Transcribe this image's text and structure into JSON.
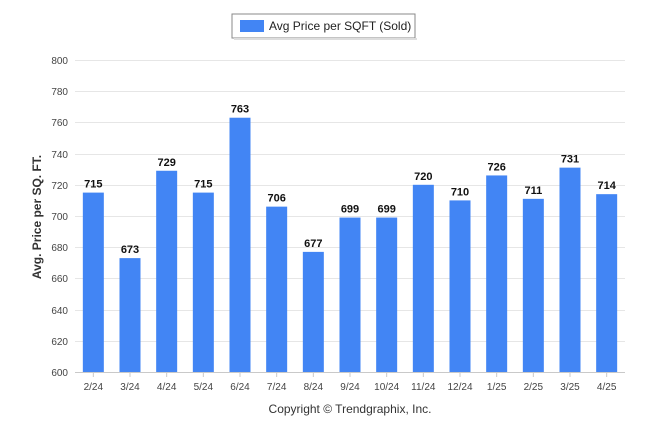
{
  "chart_data": {
    "type": "bar",
    "categories": [
      "2/24",
      "3/24",
      "4/24",
      "5/24",
      "6/24",
      "7/24",
      "8/24",
      "9/24",
      "10/24",
      "11/24",
      "12/24",
      "1/25",
      "2/25",
      "3/25",
      "4/25"
    ],
    "series": [
      {
        "name": "Avg Price per SQFT (Sold)",
        "values": [
          715,
          673,
          729,
          715,
          763,
          706,
          677,
          699,
          699,
          720,
          710,
          726,
          711,
          731,
          714
        ]
      }
    ],
    "data_labels": [
      "715",
      "673",
      "729",
      "715",
      "763",
      "706",
      "677",
      "699",
      "699",
      "720",
      "710",
      "726",
      "711",
      "731",
      "714"
    ],
    "ylabel": "Avg. Price per SQ. FT.",
    "xlabel": "",
    "ylim": [
      600,
      800
    ],
    "yticks": [
      "600",
      "620",
      "640",
      "660",
      "680",
      "700",
      "720",
      "740",
      "760",
      "780",
      "800"
    ],
    "grid": true,
    "legend_position": "top-center",
    "bar_color": "#4285f4",
    "credit": "Copyright © Trendgraphix, Inc."
  }
}
